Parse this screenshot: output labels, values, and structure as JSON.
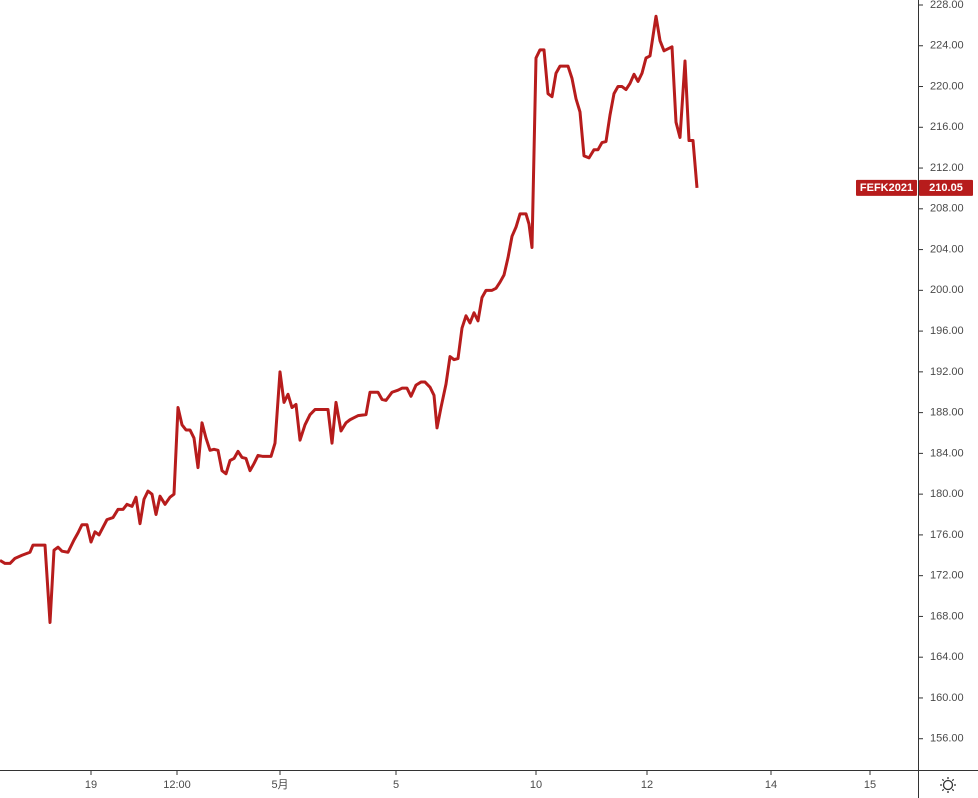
{
  "chart_data": {
    "type": "line",
    "x": [
      0,
      2.5,
      5,
      7.5,
      11,
      15,
      16.5,
      22.5,
      25,
      27,
      29,
      31,
      34,
      37,
      39,
      41,
      43.5,
      45.5,
      47.5,
      49.5,
      53.5,
      56.5,
      59,
      61.5,
      63.5,
      66,
      68,
      70,
      72,
      74,
      76,
      78,
      80,
      82.5,
      85,
      87,
      89,
      91,
      93,
      95,
      97,
      99,
      101,
      103,
      105,
      107,
      109,
      111,
      113,
      115,
      117,
      119,
      121,
      123,
      125,
      127,
      129,
      131.5,
      135.5,
      137.5,
      140,
      142,
      144,
      146,
      148,
      150,
      152.5,
      155,
      157.5,
      160,
      164,
      166,
      168,
      170.5,
      173,
      175,
      177,
      179,
      183,
      185,
      189,
      191,
      193,
      196,
      199,
      201,
      203.5,
      205.5,
      208,
      210.5,
      212.5,
      215,
      217,
      218.5,
      220.5,
      223,
      225,
      227,
      229,
      231,
      233,
      235,
      237,
      239,
      241,
      243,
      246,
      248,
      250,
      252,
      254,
      256,
      258,
      260,
      263,
      264.5,
      266,
      268,
      270,
      272,
      274,
      276,
      278,
      280,
      284,
      286,
      288,
      290,
      292,
      294.5,
      297,
      299,
      301,
      303,
      305,
      307,
      309,
      311,
      313,
      315,
      317,
      319,
      321,
      323,
      325,
      328,
      330,
      332,
      335,
      336,
      338,
      340,
      342.5,
      344.5,
      346.5,
      348.5
    ],
    "series": [
      {
        "name": "FEFK2021",
        "color": "#b71c1c",
        "values": [
          173.5,
          173.2,
          173.2,
          173.7,
          174.0,
          174.3,
          175.0,
          175.0,
          167.4,
          174.5,
          174.8,
          174.4,
          174.3,
          175.5,
          176.2,
          177.0,
          177.0,
          175.3,
          176.3,
          176.0,
          177.5,
          177.7,
          178.5,
          178.5,
          179.0,
          178.8,
          179.7,
          177.1,
          179.5,
          180.3,
          180.0,
          178.0,
          179.8,
          179.0,
          179.7,
          180.0,
          188.5,
          186.8,
          186.3,
          186.3,
          185.5,
          182.6,
          187.0,
          185.5,
          184.3,
          184.4,
          184.3,
          182.3,
          182.0,
          183.3,
          183.5,
          184.2,
          183.6,
          183.5,
          182.3,
          183.0,
          183.8,
          183.7,
          183.7,
          185.0,
          192.0,
          189.0,
          189.8,
          188.5,
          188.8,
          185.3,
          186.8,
          187.8,
          188.3,
          188.3,
          188.3,
          185.0,
          189.0,
          186.2,
          187.0,
          187.3,
          187.5,
          187.7,
          187.8,
          190.0,
          190.0,
          189.3,
          189.2,
          190.0,
          190.2,
          190.4,
          190.4,
          189.6,
          190.7,
          191.0,
          191.0,
          190.5,
          189.7,
          186.5,
          188.5,
          190.8,
          193.5,
          193.2,
          193.3,
          196.3,
          197.5,
          196.8,
          197.8,
          197.0,
          199.3,
          200.0,
          200.0,
          200.2,
          200.8,
          201.5,
          203.2,
          205.3,
          206.2,
          207.5,
          207.5,
          206.5,
          204.2,
          222.8,
          223.6,
          223.6,
          219.3,
          219.0,
          221.3,
          222.0,
          222.0,
          220.8,
          218.8,
          217.5,
          213.2,
          213.0,
          213.8,
          213.8,
          214.5,
          214.6,
          217.2,
          219.3,
          220.0,
          220.0,
          219.7,
          220.3,
          221.2,
          220.5,
          221.3,
          222.8,
          223.0,
          226.9,
          224.5,
          223.5,
          223.8,
          223.9,
          216.5,
          215.0,
          222.5,
          214.7,
          214.7,
          210.05
        ]
      }
    ],
    "xlim": [
      0,
      459
    ],
    "xticks": [
      {
        "value": 45.5,
        "label": "19"
      },
      {
        "value": 88.5,
        "label": "12:00"
      },
      {
        "value": 140,
        "label": "5月"
      },
      {
        "value": 198,
        "label": "5"
      },
      {
        "value": 268,
        "label": "10"
      },
      {
        "value": 323.5,
        "label": "12"
      },
      {
        "value": 385.5,
        "label": "14"
      },
      {
        "value": 435,
        "label": "15"
      }
    ],
    "ylim": [
      152.93,
      228.49
    ],
    "yticks": [
      {
        "value": 156,
        "label": "156.00"
      },
      {
        "value": 160,
        "label": "160.00"
      },
      {
        "value": 164,
        "label": "164.00"
      },
      {
        "value": 168,
        "label": "168.00"
      },
      {
        "value": 172,
        "label": "172.00"
      },
      {
        "value": 176,
        "label": "176.00"
      },
      {
        "value": 180,
        "label": "180.00"
      },
      {
        "value": 184,
        "label": "184.00"
      },
      {
        "value": 188,
        "label": "188.00"
      },
      {
        "value": 192,
        "label": "192.00"
      },
      {
        "value": 196,
        "label": "196.00"
      },
      {
        "value": 200,
        "label": "200.00"
      },
      {
        "value": 204,
        "label": "204.00"
      },
      {
        "value": 208,
        "label": "208.00"
      },
      {
        "value": 212,
        "label": "212.00"
      },
      {
        "value": 216,
        "label": "216.00"
      },
      {
        "value": 220,
        "label": "220.00"
      },
      {
        "value": 224,
        "label": "224.00"
      },
      {
        "value": 228,
        "label": "228.00"
      }
    ]
  }
}
